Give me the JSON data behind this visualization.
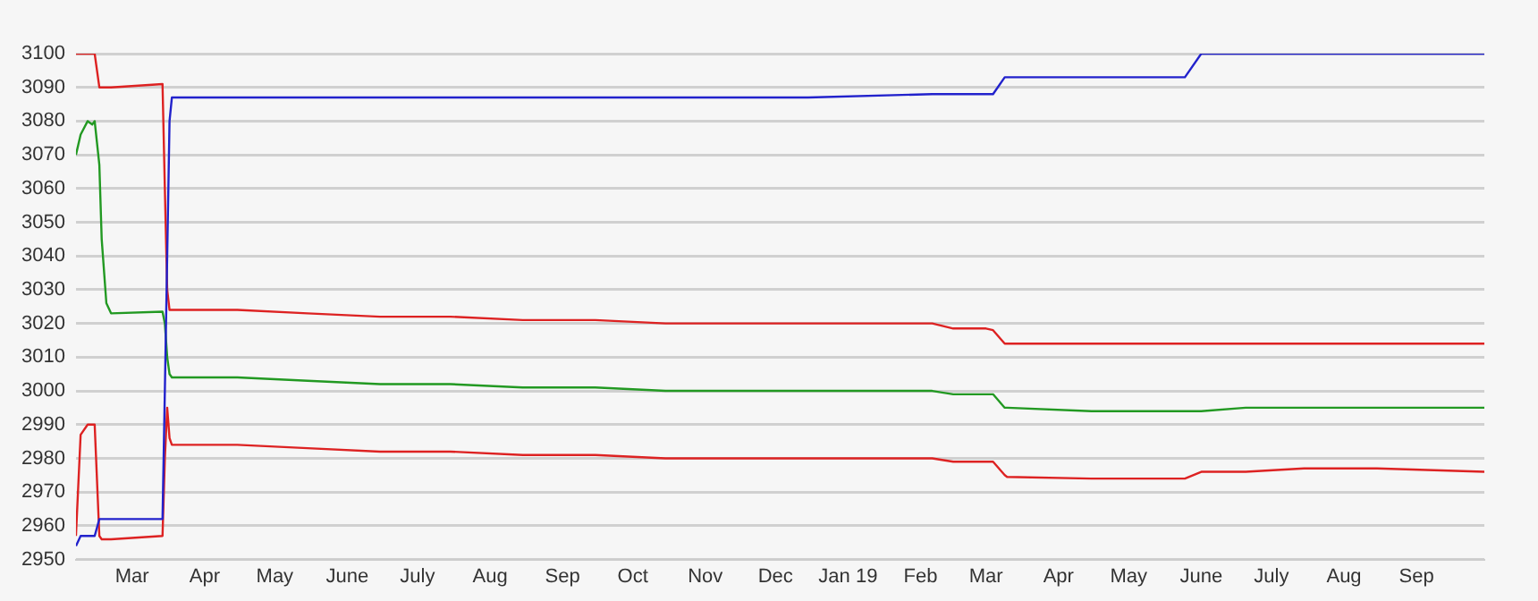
{
  "chart_data": {
    "type": "line",
    "x": [
      "2018-02-05",
      "2018-02-07",
      "2018-02-10",
      "2018-02-12",
      "2018-02-13",
      "2018-02-15",
      "2018-02-16",
      "2018-02-18",
      "2018-02-20",
      "2018-03-14",
      "2018-03-15",
      "2018-03-16",
      "2018-03-17",
      "2018-03-18",
      "2018-04-15",
      "2018-05-15",
      "2018-06-15",
      "2018-07-15",
      "2018-08-15",
      "2018-09-15",
      "2018-10-15",
      "2018-12-15",
      "2019-02-06",
      "2019-02-15",
      "2019-03-01",
      "2019-03-04",
      "2019-03-09",
      "2019-03-10",
      "2019-04-15",
      "2019-05-25",
      "2019-06-01",
      "2019-06-20",
      "2019-07-15",
      "2019-08-15",
      "2019-09-30"
    ],
    "series": [
      {
        "color": "#2222cc",
        "values": [
          2954,
          2957,
          2957,
          2957,
          2957,
          2962,
          2962,
          2962,
          2962,
          2962,
          3000,
          3040,
          3080,
          3087,
          3087,
          3087,
          3087,
          3087,
          3087,
          3087,
          3087,
          3087,
          3088,
          3088,
          3088,
          3088,
          3093,
          3093,
          3093,
          3093,
          3100,
          3100,
          3100,
          3100,
          3100
        ]
      },
      {
        "color": "#dd2222",
        "values": [
          3100,
          3100,
          3100,
          3100,
          3100,
          3090,
          3090,
          3090,
          3090,
          3091,
          3060,
          3030,
          3024,
          3024,
          3024,
          3023,
          3022,
          3022,
          3021,
          3021,
          3020,
          3020,
          3020,
          3018.5,
          3018.5,
          3018,
          3014,
          3014,
          3014,
          3014,
          3014,
          3014,
          3014,
          3014,
          3014
        ]
      },
      {
        "color": "#229922",
        "values": [
          3070,
          3076,
          3080,
          3079,
          3080,
          3067,
          3045,
          3026,
          3023,
          3023.5,
          3020,
          3010,
          3005,
          3004,
          3004,
          3003,
          3002,
          3002,
          3001,
          3001,
          3000,
          3000,
          3000,
          2999,
          2999,
          2999,
          2995,
          2995,
          2994,
          2994,
          2994,
          2995,
          2995,
          2995,
          2995
        ]
      },
      {
        "color": "#dd2222",
        "values": [
          2957,
          2987,
          2990,
          2990,
          2990,
          2957,
          2956,
          2956,
          2956,
          2957,
          2980,
          2995,
          2986,
          2984,
          2984,
          2983,
          2982,
          2982,
          2981,
          2981,
          2980,
          2980,
          2980,
          2979,
          2979,
          2979,
          2975,
          2974.5,
          2974,
          2974,
          2976,
          2976,
          2977,
          2977,
          2976
        ]
      }
    ],
    "xlim": [
      "2018-02-05",
      "2019-09-30"
    ],
    "xticks": [
      {
        "value": "2018-03-01",
        "label": "Mar"
      },
      {
        "value": "2018-04-01",
        "label": "Apr"
      },
      {
        "value": "2018-05-01",
        "label": "May"
      },
      {
        "value": "2018-06-01",
        "label": "June"
      },
      {
        "value": "2018-07-01",
        "label": "July"
      },
      {
        "value": "2018-08-01",
        "label": "Aug"
      },
      {
        "value": "2018-09-01",
        "label": "Sep"
      },
      {
        "value": "2018-10-01",
        "label": "Oct"
      },
      {
        "value": "2018-11-01",
        "label": "Nov"
      },
      {
        "value": "2018-12-01",
        "label": "Dec"
      },
      {
        "value": "2019-01-01",
        "label": "Jan 19"
      },
      {
        "value": "2019-02-01",
        "label": "Feb"
      },
      {
        "value": "2019-03-01",
        "label": "Mar"
      },
      {
        "value": "2019-04-01",
        "label": "Apr"
      },
      {
        "value": "2019-05-01",
        "label": "May"
      },
      {
        "value": "2019-06-01",
        "label": "June"
      },
      {
        "value": "2019-07-01",
        "label": "July"
      },
      {
        "value": "2019-08-01",
        "label": "Aug"
      },
      {
        "value": "2019-09-01",
        "label": "Sep"
      }
    ],
    "ylim": [
      2950,
      3100
    ],
    "yticks": [
      2950,
      2960,
      2970,
      2980,
      2990,
      3000,
      3010,
      3020,
      3030,
      3040,
      3050,
      3060,
      3070,
      3080,
      3090,
      3100
    ],
    "grid": "y",
    "legend": false,
    "marker": "none",
    "line_style": "solid"
  }
}
